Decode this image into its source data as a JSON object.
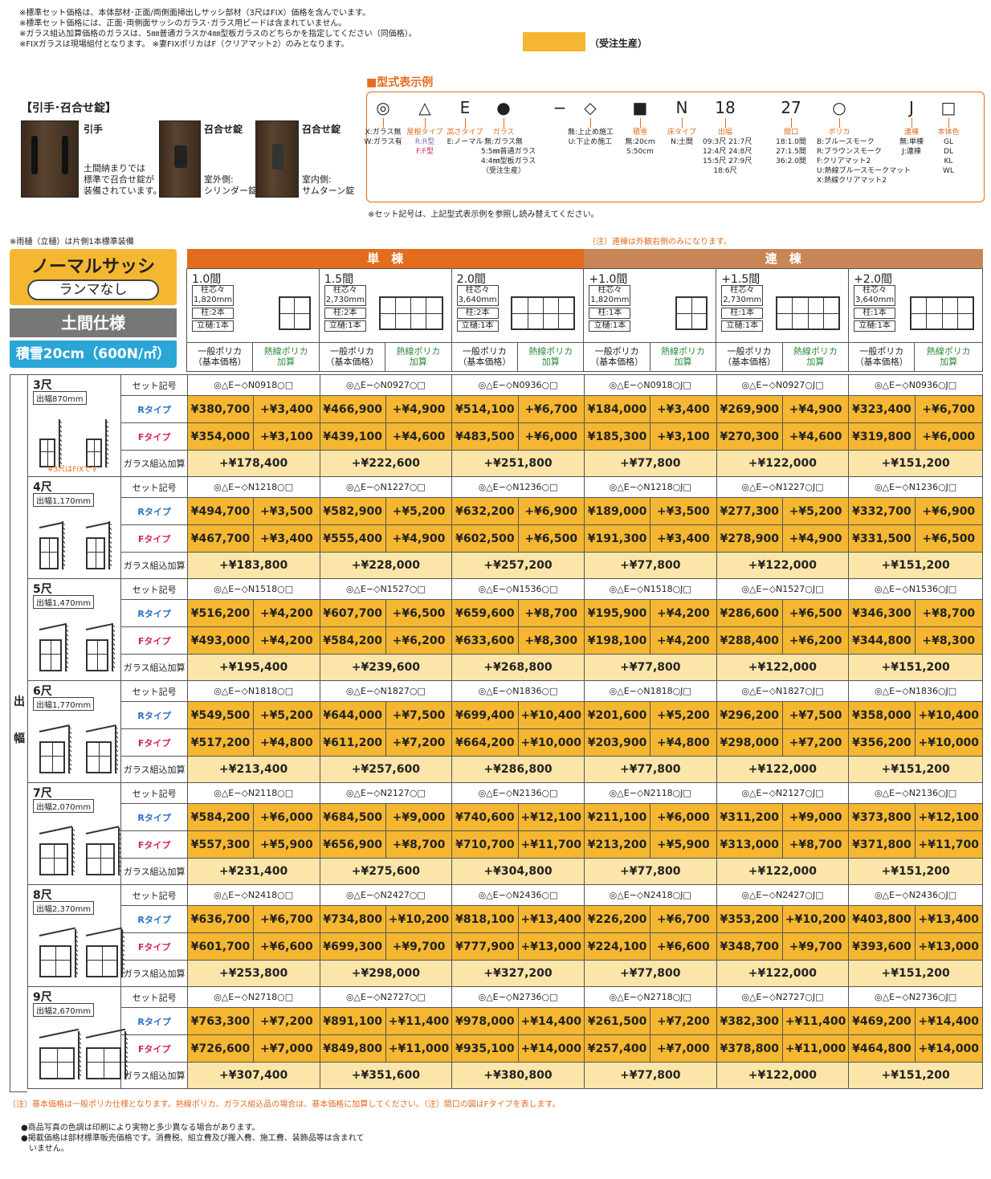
{
  "notes_top": [
    "※標準セット価格は、本体部材･正面/両側面掃出しサッシ部材（3尺はFIX）価格を含んでいます。",
    "※標準セット価格には、正面･両側面サッシのガラス･ガラス用ビードは含まれていません。",
    "※ガラス組込加算価格のガラスは、5㎜普通ガラスか4㎜型板ガラスのどちらかを指定してください（同価格）。",
    "※FIXガラスは現場組付となります。 ※妻FIXポリカはF（クリアマット2）のみとなります。"
  ],
  "legend": {
    "label": "（受注生産）",
    "color": "#f5b731"
  },
  "hikite": {
    "title": "【引手･召合せ錠】",
    "items": [
      {
        "label": "引手",
        "text": "土間納まりでは\n標準で召合せ錠が\n装備されています。"
      },
      {
        "label": "召合せ錠",
        "text": "室外側:\nシリンダー錠"
      },
      {
        "label": "召合せ錠",
        "text": "室内側:\nサムターン錠"
      }
    ]
  },
  "katashiki": {
    "title": "■型式表示例",
    "cols": [
      {
        "sym": "◎",
        "label": "",
        "desc": [
          "X:ガラス無",
          "W:ガラス有"
        ]
      },
      {
        "sym": "△",
        "label": "屋根タイプ",
        "desc": [
          "R:R型",
          "F:F型"
        ]
      },
      {
        "sym": "E",
        "label": "高さタイプ",
        "desc": [
          "E:ノーマル"
        ]
      },
      {
        "sym": "●",
        "label": "ガラス",
        "desc": [
          "無:ガラス無",
          "5:5㎜普通ガラス",
          "4:4㎜型板ガラス",
          "（受注生産）"
        ]
      },
      {
        "sym": "−",
        "label": "",
        "desc": []
      },
      {
        "sym": "◇",
        "label": "",
        "desc": [
          "無:上止め施工",
          "U:下止め施工"
        ]
      },
      {
        "sym": "■",
        "label": "積雪",
        "desc": [
          "無:20cm",
          "S:50cm"
        ]
      },
      {
        "sym": "N",
        "label": "床タイプ",
        "desc": [
          "N:土間"
        ]
      },
      {
        "sym": "18",
        "label": "出幅",
        "desc": [
          "09:3尺 21:7尺",
          "12:4尺 24:8尺",
          "15:5尺 27:9尺",
          "18:6尺"
        ]
      },
      {
        "sym": "27",
        "label": "間口",
        "desc": [
          "18:1.0間",
          "27:1.5間",
          "36:2.0間"
        ]
      },
      {
        "sym": "○",
        "label": "ポリカ",
        "desc": [
          "B:ブルースモーク",
          "R:ブラウンスモーク",
          "F:クリアマット2",
          "U:熱線ブルースモークマット",
          "X:熱線クリアマット2"
        ]
      },
      {
        "sym": "J",
        "label": "連棟",
        "desc": [
          "無:単棟",
          "J:連棟"
        ]
      },
      {
        "sym": "□",
        "label": "本体色",
        "desc": [
          "GL",
          "DL",
          "KL",
          "WL"
        ]
      }
    ],
    "note": "※セット記号は、上記型式表示例を参照し読み替えてください。"
  },
  "note_left": "※雨樋（立樋）は片側1本標準装備",
  "note_right": "（注）連棟は外観右側のみになります。",
  "badges": {
    "title": "ノーマルサッシ",
    "sub": "ランマなし",
    "spec": "土間仕様",
    "snow": "積雪20cm（600N/㎡）"
  },
  "groups": {
    "tan": "単　棟",
    "ren": "連　棟"
  },
  "sizes": [
    {
      "name": "1.0間",
      "pitch": "柱芯々\n1,820mm",
      "pillar": "柱:2本",
      "gutter": "立樋:1本",
      "panes": 2
    },
    {
      "name": "1.5間",
      "pitch": "柱芯々\n2,730mm",
      "pillar": "柱:2本",
      "gutter": "立樋:1本",
      "panes": 4
    },
    {
      "name": "2.0間",
      "pitch": "柱芯々\n3,640mm",
      "pillar": "柱:2本",
      "gutter": "立樋:1本",
      "panes": 4
    },
    {
      "name": "+1.0間",
      "pitch": "柱芯々\n1,820mm",
      "pillar": "柱:1本",
      "gutter": "立樋:1本",
      "panes": 2
    },
    {
      "name": "+1.5間",
      "pitch": "柱芯々\n2,730mm",
      "pillar": "柱:1本",
      "gutter": "立樋:1本",
      "panes": 4
    },
    {
      "name": "+2.0間",
      "pitch": "柱芯々\n3,640mm",
      "pillar": "柱:1本",
      "gutter": "立樋:1本",
      "panes": 4
    }
  ],
  "price_heads": {
    "base": "一般ポリカ\n（基本価格）",
    "add": "熱線ポリカ\n加算"
  },
  "row_labels": {
    "code": "セット記号",
    "r": "Rタイプ",
    "f": "Fタイプ",
    "glass": "ガラス組込加算"
  },
  "vertical_label": [
    "出",
    "幅"
  ],
  "fix_note": "※3尺はFIXです",
  "rows": [
    {
      "name": "3尺",
      "width": "出幅870mm",
      "codes": [
        "◎△E−◇N0918○□",
        "◎△E−◇N0927○□",
        "◎△E−◇N0936○□",
        "◎△E−◇N0918○J□",
        "◎△E−◇N0927○J□",
        "◎△E−◇N0936○J□"
      ],
      "r": [
        "¥380,700",
        "+¥3,400",
        "¥466,900",
        "+¥4,900",
        "¥514,100",
        "+¥6,700",
        "¥184,000",
        "+¥3,400",
        "¥269,900",
        "+¥4,900",
        "¥323,400",
        "+¥6,700"
      ],
      "f": [
        "¥354,000",
        "+¥3,100",
        "¥439,100",
        "+¥4,600",
        "¥483,500",
        "+¥6,000",
        "¥185,300",
        "+¥3,100",
        "¥270,300",
        "+¥4,600",
        "¥319,800",
        "+¥6,000"
      ],
      "glass": [
        "+¥178,400",
        "+¥222,600",
        "+¥251,800",
        "+¥77,800",
        "+¥122,000",
        "+¥151,200"
      ]
    },
    {
      "name": "4尺",
      "width": "出幅1,170mm",
      "codes": [
        "◎△E−◇N1218○□",
        "◎△E−◇N1227○□",
        "◎△E−◇N1236○□",
        "◎△E−◇N1218○J□",
        "◎△E−◇N1227○J□",
        "◎△E−◇N1236○J□"
      ],
      "r": [
        "¥494,700",
        "+¥3,500",
        "¥582,900",
        "+¥5,200",
        "¥632,200",
        "+¥6,900",
        "¥189,000",
        "+¥3,500",
        "¥277,300",
        "+¥5,200",
        "¥332,700",
        "+¥6,900"
      ],
      "f": [
        "¥467,700",
        "+¥3,400",
        "¥555,400",
        "+¥4,900",
        "¥602,500",
        "+¥6,500",
        "¥191,300",
        "+¥3,400",
        "¥278,900",
        "+¥4,900",
        "¥331,500",
        "+¥6,500"
      ],
      "glass": [
        "+¥183,800",
        "+¥228,000",
        "+¥257,200",
        "+¥77,800",
        "+¥122,000",
        "+¥151,200"
      ]
    },
    {
      "name": "5尺",
      "width": "出幅1,470mm",
      "codes": [
        "◎△E−◇N1518○□",
        "◎△E−◇N1527○□",
        "◎△E−◇N1536○□",
        "◎△E−◇N1518○J□",
        "◎△E−◇N1527○J□",
        "◎△E−◇N1536○J□"
      ],
      "r": [
        "¥516,200",
        "+¥4,200",
        "¥607,700",
        "+¥6,500",
        "¥659,600",
        "+¥8,700",
        "¥195,900",
        "+¥4,200",
        "¥286,600",
        "+¥6,500",
        "¥346,300",
        "+¥8,700"
      ],
      "f": [
        "¥493,000",
        "+¥4,200",
        "¥584,200",
        "+¥6,200",
        "¥633,600",
        "+¥8,300",
        "¥198,100",
        "+¥4,200",
        "¥288,400",
        "+¥6,200",
        "¥344,800",
        "+¥8,300"
      ],
      "glass": [
        "+¥195,400",
        "+¥239,600",
        "+¥268,800",
        "+¥77,800",
        "+¥122,000",
        "+¥151,200"
      ]
    },
    {
      "name": "6尺",
      "width": "出幅1,770mm",
      "codes": [
        "◎△E−◇N1818○□",
        "◎△E−◇N1827○□",
        "◎△E−◇N1836○□",
        "◎△E−◇N1818○J□",
        "◎△E−◇N1827○J□",
        "◎△E−◇N1836○J□"
      ],
      "r": [
        "¥549,500",
        "+¥5,200",
        "¥644,000",
        "+¥7,500",
        "¥699,400",
        "+¥10,400",
        "¥201,600",
        "+¥5,200",
        "¥296,200",
        "+¥7,500",
        "¥358,000",
        "+¥10,400"
      ],
      "f": [
        "¥517,200",
        "+¥4,800",
        "¥611,200",
        "+¥7,200",
        "¥664,200",
        "+¥10,000",
        "¥203,900",
        "+¥4,800",
        "¥298,000",
        "+¥7,200",
        "¥356,200",
        "+¥10,000"
      ],
      "glass": [
        "+¥213,400",
        "+¥257,600",
        "+¥286,800",
        "+¥77,800",
        "+¥122,000",
        "+¥151,200"
      ]
    },
    {
      "name": "7尺",
      "width": "出幅2,070mm",
      "codes": [
        "◎△E−◇N2118○□",
        "◎△E−◇N2127○□",
        "◎△E−◇N2136○□",
        "◎△E−◇N2118○J□",
        "◎△E−◇N2127○J□",
        "◎△E−◇N2136○J□"
      ],
      "r": [
        "¥584,200",
        "+¥6,000",
        "¥684,500",
        "+¥9,000",
        "¥740,600",
        "+¥12,100",
        "¥211,100",
        "+¥6,000",
        "¥311,200",
        "+¥9,000",
        "¥373,800",
        "+¥12,100"
      ],
      "f": [
        "¥557,300",
        "+¥5,900",
        "¥656,900",
        "+¥8,700",
        "¥710,700",
        "+¥11,700",
        "¥213,200",
        "+¥5,900",
        "¥313,000",
        "+¥8,700",
        "¥371,800",
        "+¥11,700"
      ],
      "glass": [
        "+¥231,400",
        "+¥275,600",
        "+¥304,800",
        "+¥77,800",
        "+¥122,000",
        "+¥151,200"
      ]
    },
    {
      "name": "8尺",
      "width": "出幅2,370mm",
      "codes": [
        "◎△E−◇N2418○□",
        "◎△E−◇N2427○□",
        "◎△E−◇N2436○□",
        "◎△E−◇N2418○J□",
        "◎△E−◇N2427○J□",
        "◎△E−◇N2436○J□"
      ],
      "r": [
        "¥636,700",
        "+¥6,700",
        "¥734,800",
        "+¥10,200",
        "¥818,100",
        "+¥13,400",
        "¥226,200",
        "+¥6,700",
        "¥353,200",
        "+¥10,200",
        "¥403,800",
        "+¥13,400"
      ],
      "f": [
        "¥601,700",
        "+¥6,600",
        "¥699,300",
        "+¥9,700",
        "¥777,900",
        "+¥13,000",
        "¥224,100",
        "+¥6,600",
        "¥348,700",
        "+¥9,700",
        "¥393,600",
        "+¥13,000"
      ],
      "glass": [
        "+¥253,800",
        "+¥298,000",
        "+¥327,200",
        "+¥77,800",
        "+¥122,000",
        "+¥151,200"
      ]
    },
    {
      "name": "9尺",
      "width": "出幅2,670mm",
      "codes": [
        "◎△E−◇N2718○□",
        "◎△E−◇N2727○□",
        "◎△E−◇N2736○□",
        "◎△E−◇N2718○J□",
        "◎△E−◇N2727○J□",
        "◎△E−◇N2736○J□"
      ],
      "r": [
        "¥763,300",
        "+¥7,200",
        "¥891,100",
        "+¥11,400",
        "¥978,000",
        "+¥14,400",
        "¥261,500",
        "+¥7,200",
        "¥382,300",
        "+¥11,400",
        "¥469,200",
        "+¥14,400"
      ],
      "f": [
        "¥726,600",
        "+¥7,000",
        "¥849,800",
        "+¥11,000",
        "¥935,100",
        "+¥14,000",
        "¥257,400",
        "+¥7,000",
        "¥378,800",
        "+¥11,000",
        "¥464,800",
        "+¥14,000"
      ],
      "glass": [
        "+¥307,400",
        "+¥351,600",
        "+¥380,800",
        "+¥77,800",
        "+¥122,000",
        "+¥151,200"
      ]
    }
  ],
  "foot_note": "（注）基本価格は一般ポリカ仕様となります。熱線ポリカ、ガラス組込品の場合は、基本価格に加算してください。（注）間口の図はFタイプを表します。",
  "foot_bullets": [
    "●商品写真の色調は印刷により実物と多少異なる場合があります。",
    "●掲載価格は部材標準販売価格です。消費税、組立費及び搬入費、施工費、装飾品等は含まれて",
    "　いません。"
  ]
}
